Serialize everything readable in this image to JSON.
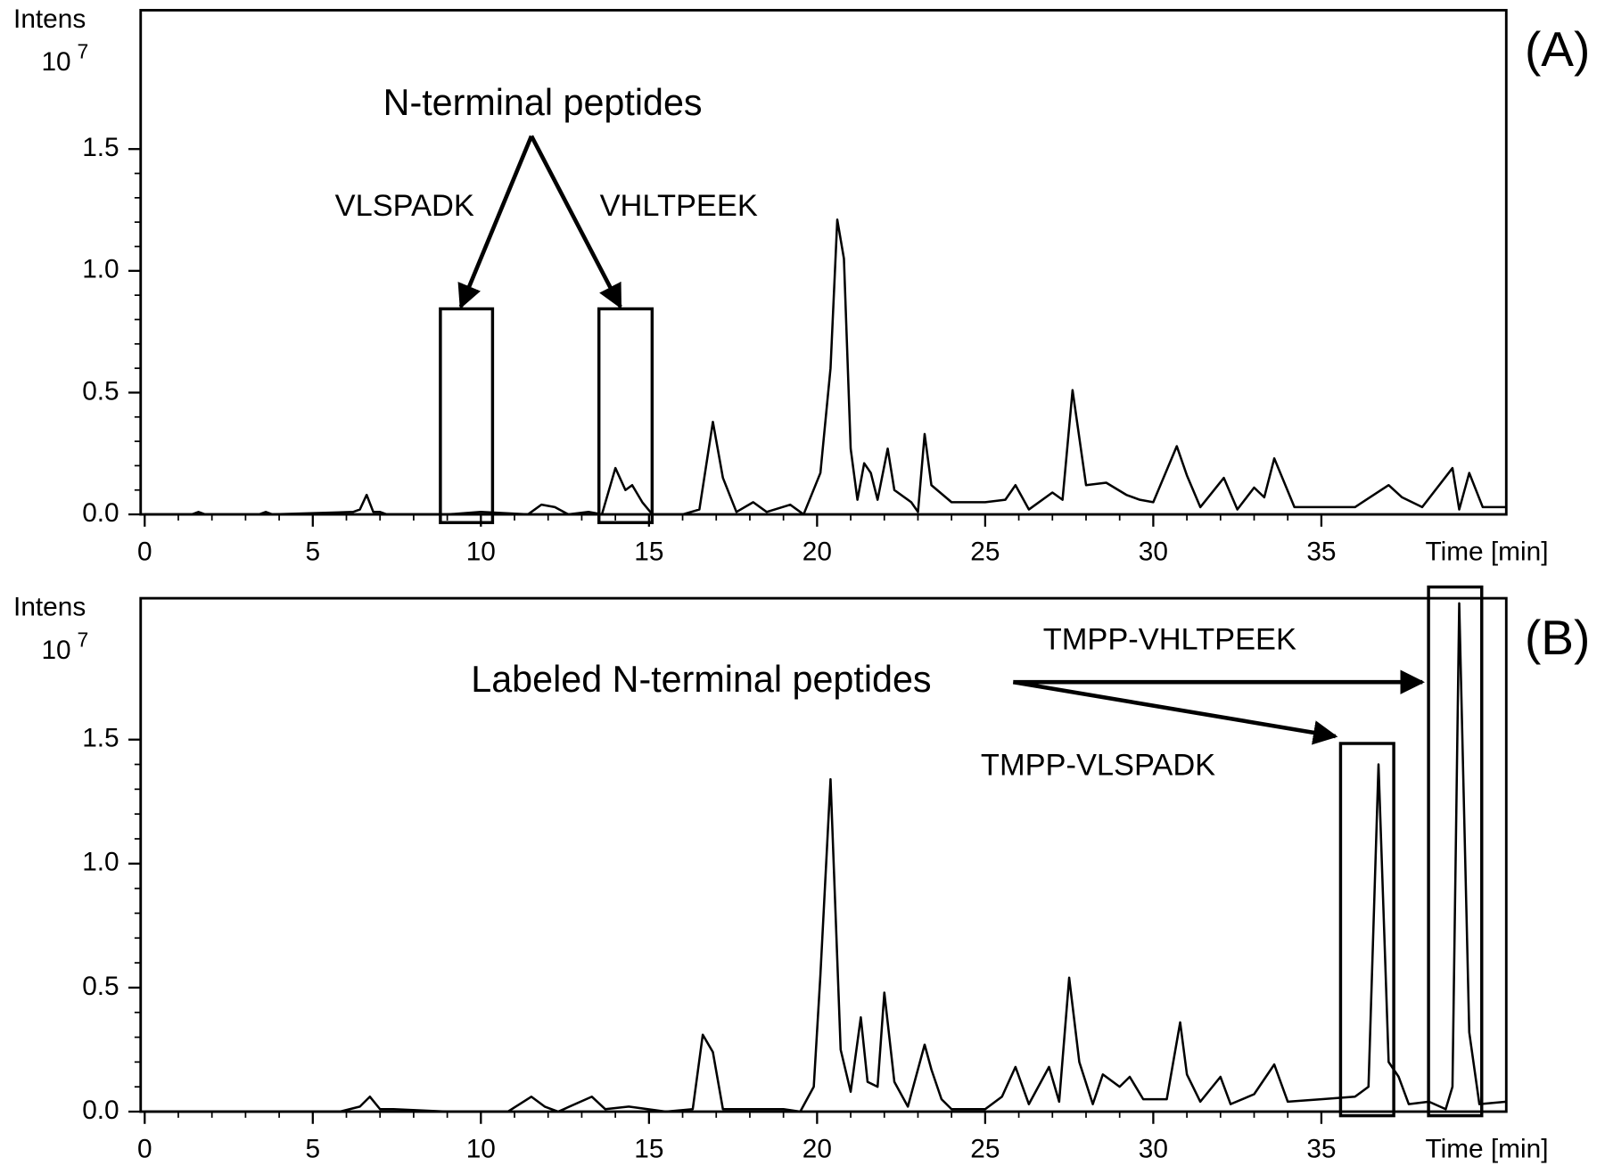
{
  "chart_data": [
    {
      "type": "line",
      "panel_label": "(A)",
      "x_label": "Time [min]",
      "y_label": "Intens",
      "y_scale_base": "10",
      "y_scale_exponent": "7",
      "annotations": [
        "N-terminal peptides",
        "VLSPADK",
        "VHLTPEEK"
      ],
      "color": "#000000",
      "xlim": [
        -0.12,
        40.5
      ],
      "ylim": [
        0,
        2.07
      ],
      "xticks": [
        0,
        5,
        10,
        15,
        20,
        25,
        30,
        35
      ],
      "yticks": [
        {
          "value": 0,
          "label": "0.0"
        },
        0.5,
        {
          "value": 1,
          "label": "1.0"
        },
        1.5
      ],
      "x": [
        0,
        1.4,
        1.6,
        1.8,
        3.4,
        3.6,
        3.8,
        6.2,
        6.4,
        6.6,
        6.8,
        7.0,
        7.2,
        9.0,
        10.0,
        11.4,
        11.8,
        12.2,
        12.6,
        13.2,
        13.6,
        14.0,
        14.3,
        14.5,
        14.8,
        15.1,
        16.0,
        16.5,
        16.9,
        17.2,
        17.6,
        18.1,
        18.5,
        19.2,
        19.6,
        20.1,
        20.4,
        20.6,
        20.8,
        21.0,
        21.2,
        21.4,
        21.6,
        21.8,
        22.1,
        22.3,
        22.8,
        23.0,
        23.2,
        23.4,
        24.0,
        25.0,
        25.6,
        25.9,
        26.3,
        27.0,
        27.3,
        27.6,
        28.0,
        28.6,
        29.2,
        29.6,
        30.0,
        30.7,
        31.0,
        31.4,
        32.1,
        32.5,
        33.0,
        33.3,
        33.6,
        34.2,
        35.0,
        36.0,
        37.0,
        37.4,
        38.0,
        38.9,
        39.1,
        39.4,
        39.8,
        40.5
      ],
      "values": [
        0,
        0,
        0.01,
        0,
        0,
        0.01,
        0,
        0.01,
        0.02,
        0.08,
        0.01,
        0.01,
        0,
        0,
        0.01,
        0,
        0.04,
        0.03,
        0,
        0.01,
        0,
        0.19,
        0.1,
        0.12,
        0.05,
        0,
        0,
        0.02,
        0.38,
        0.15,
        0.01,
        0.05,
        0.01,
        0.04,
        0,
        0.17,
        0.6,
        1.21,
        1.05,
        0.27,
        0.06,
        0.21,
        0.17,
        0.06,
        0.27,
        0.1,
        0.05,
        0.01,
        0.33,
        0.12,
        0.05,
        0.05,
        0.06,
        0.12,
        0.02,
        0.09,
        0.06,
        0.51,
        0.12,
        0.13,
        0.08,
        0.06,
        0.05,
        0.28,
        0.16,
        0.03,
        0.15,
        0.02,
        0.11,
        0.07,
        0.23,
        0.03,
        0.03,
        0.03,
        0.12,
        0.07,
        0.03,
        0.19,
        0.02,
        0.17,
        0.03,
        0.03
      ]
    },
    {
      "type": "line",
      "panel_label": "(B)",
      "x_label": "Time [min]",
      "y_label": "Intens",
      "y_scale_base": "10",
      "y_scale_exponent": "7",
      "annotations": [
        "Labeled N-terminal peptides",
        "TMPP-VHLTPEEK",
        "TMPP-VLSPADK"
      ],
      "color": "#000000",
      "xlim": [
        -0.12,
        40.5
      ],
      "ylim": [
        0,
        2.07
      ],
      "xticks": [
        0,
        5,
        10,
        15,
        20,
        25,
        30,
        35
      ],
      "yticks": [
        {
          "value": 0,
          "label": "0.0"
        },
        0.5,
        {
          "value": 1,
          "label": "1.0"
        },
        1.5
      ],
      "x": [
        0,
        5.8,
        6.4,
        6.7,
        7.0,
        7.4,
        9.0,
        10.8,
        11.5,
        11.9,
        12.3,
        13.3,
        13.7,
        14.4,
        15.5,
        16.3,
        16.6,
        16.9,
        17.2,
        19.0,
        19.5,
        19.9,
        20.1,
        20.4,
        20.7,
        21.0,
        21.3,
        21.5,
        21.8,
        22.0,
        22.3,
        22.7,
        23.2,
        23.4,
        23.7,
        24.0,
        25.0,
        25.5,
        25.9,
        26.3,
        26.9,
        27.2,
        27.5,
        27.8,
        28.2,
        28.5,
        29.0,
        29.3,
        29.7,
        30.4,
        30.8,
        31.0,
        31.4,
        32.0,
        32.3,
        33.0,
        33.6,
        34.0,
        35.0,
        36.0,
        36.4,
        36.7,
        37.0,
        37.3,
        37.6,
        38.2,
        38.7,
        38.9,
        39.1,
        39.4,
        39.7,
        40.5
      ],
      "values": [
        0,
        0,
        0.02,
        0.06,
        0.01,
        0.01,
        0,
        0,
        0.06,
        0.02,
        0,
        0.06,
        0.01,
        0.02,
        0,
        0.01,
        0.31,
        0.24,
        0.01,
        0.01,
        0,
        0.1,
        0.55,
        1.34,
        0.25,
        0.08,
        0.38,
        0.12,
        0.1,
        0.48,
        0.12,
        0.02,
        0.27,
        0.17,
        0.05,
        0.01,
        0.01,
        0.06,
        0.18,
        0.03,
        0.18,
        0.04,
        0.54,
        0.2,
        0.03,
        0.15,
        0.1,
        0.14,
        0.05,
        0.05,
        0.36,
        0.15,
        0.04,
        0.14,
        0.03,
        0.07,
        0.19,
        0.04,
        0.05,
        0.06,
        0.1,
        1.4,
        0.2,
        0.14,
        0.03,
        0.04,
        0.01,
        0.1,
        2.05,
        0.32,
        0.03,
        0.04
      ]
    }
  ]
}
